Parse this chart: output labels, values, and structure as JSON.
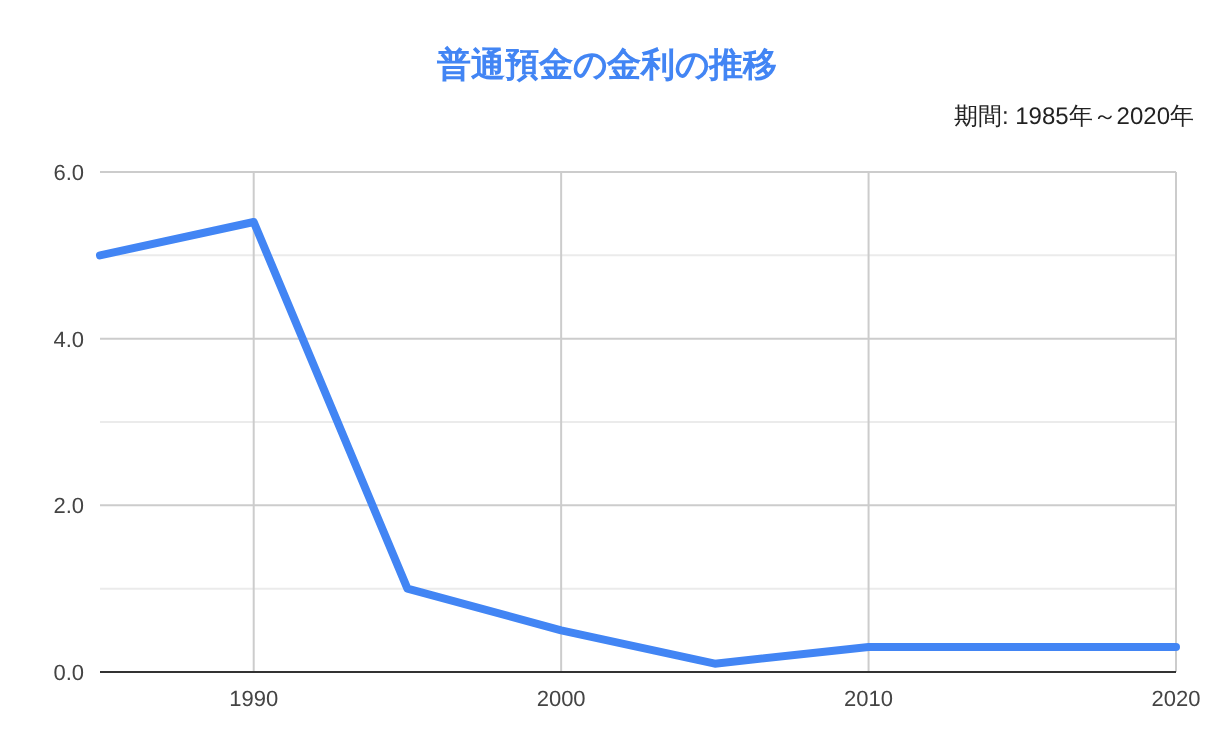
{
  "chart_data": {
    "type": "line",
    "title": "普通預金の金利の推移",
    "subtitle": "期間: 1985年～2020年",
    "x": [
      1985,
      1990,
      1995,
      2000,
      2005,
      2010,
      2015,
      2020
    ],
    "series": [
      {
        "color": "#4285f4",
        "values": [
          5.0,
          5.4,
          1.0,
          0.5,
          0.1,
          0.3,
          0.3,
          0.3
        ]
      }
    ],
    "xlim": [
      1985,
      2020
    ],
    "xticks": [
      1990,
      2000,
      2010,
      2020
    ],
    "ylim": [
      0,
      6
    ],
    "yticks": [
      {
        "value": 0,
        "label": "0.0"
      },
      {
        "value": 1,
        "label": null
      },
      {
        "value": 2,
        "label": "2.0"
      },
      {
        "value": 3,
        "label": null
      },
      {
        "value": 4,
        "label": "4.0"
      },
      {
        "value": 5,
        "label": null
      },
      {
        "value": 6,
        "label": "6.0"
      }
    ],
    "grid": true,
    "marker": "none",
    "line_style": "solid"
  }
}
